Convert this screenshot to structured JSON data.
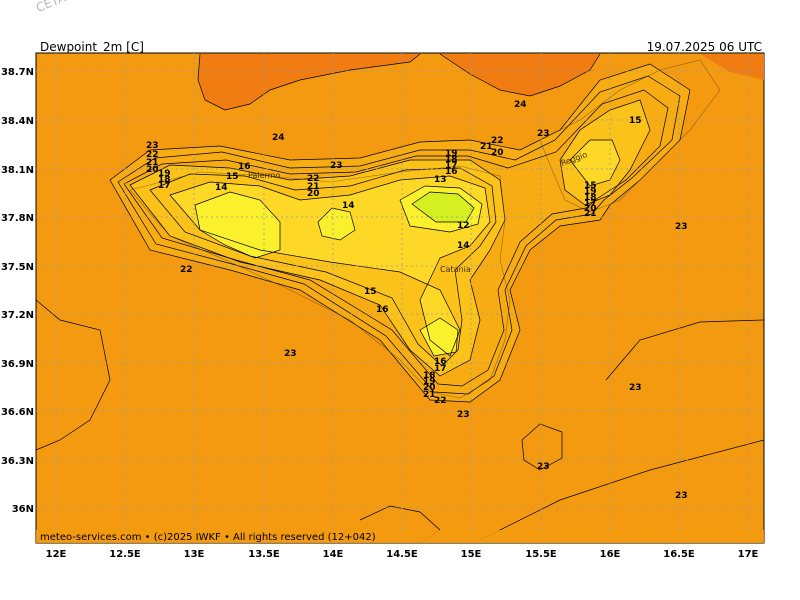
{
  "watermark": "CETA – Im",
  "header": {
    "parameter": "Dewpoint_2m [C]",
    "valid_time": "19.07.2025 06 UTC"
  },
  "footer": {
    "credit": "meteo-services.com • (c)2025 IWKF • All rights reserved (12+042)"
  },
  "axes": {
    "lat_labels": [
      "38.7N",
      "38.4N",
      "38.1N",
      "37.8N",
      "37.5N",
      "37.2N",
      "36.9N",
      "36.6N",
      "36.3N",
      "36N"
    ],
    "lon_labels": [
      "12E",
      "12.5E",
      "13E",
      "13.5E",
      "14E",
      "14.5E",
      "15E",
      "15.5E",
      "16E",
      "16.5E",
      "17E"
    ]
  },
  "cities": [
    {
      "name": "Palermo"
    },
    {
      "name": "Catania"
    },
    {
      "name": "Reggio"
    }
  ],
  "contour_labels": [
    {
      "text": "24"
    },
    {
      "text": "24"
    },
    {
      "text": "23"
    },
    {
      "text": "22"
    },
    {
      "text": "21"
    },
    {
      "text": "20"
    },
    {
      "text": "19"
    },
    {
      "text": "18"
    },
    {
      "text": "17"
    },
    {
      "text": "16"
    },
    {
      "text": "15"
    },
    {
      "text": "14"
    },
    {
      "text": "22"
    },
    {
      "text": "21"
    },
    {
      "text": "20"
    },
    {
      "text": "23"
    },
    {
      "text": "14"
    },
    {
      "text": "19"
    },
    {
      "text": "18"
    },
    {
      "text": "17"
    },
    {
      "text": "16"
    },
    {
      "text": "15"
    },
    {
      "text": "13"
    },
    {
      "text": "12"
    },
    {
      "text": "14"
    },
    {
      "text": "22"
    },
    {
      "text": "21"
    },
    {
      "text": "20"
    },
    {
      "text": "23"
    },
    {
      "text": "15"
    },
    {
      "text": "15"
    },
    {
      "text": "19"
    },
    {
      "text": "18"
    },
    {
      "text": "17"
    },
    {
      "text": "20"
    },
    {
      "text": "21"
    },
    {
      "text": "22"
    },
    {
      "text": "23"
    },
    {
      "text": "22"
    },
    {
      "text": "15"
    },
    {
      "text": "16"
    },
    {
      "text": "23"
    },
    {
      "text": "16"
    },
    {
      "text": "17"
    },
    {
      "text": "18"
    },
    {
      "text": "19"
    },
    {
      "text": "20"
    },
    {
      "text": "21"
    },
    {
      "text": "22"
    },
    {
      "text": "23"
    },
    {
      "text": "23"
    },
    {
      "text": "23"
    },
    {
      "text": "23"
    }
  ],
  "colors": {
    "field_23": "#f49a10",
    "field_24": "#f07c12",
    "field_22": "#f8ac14",
    "field_19": "#fbc21a",
    "field_16": "#fdd826",
    "field_13": "#fbf02c",
    "field_12": "#d4f020"
  }
}
